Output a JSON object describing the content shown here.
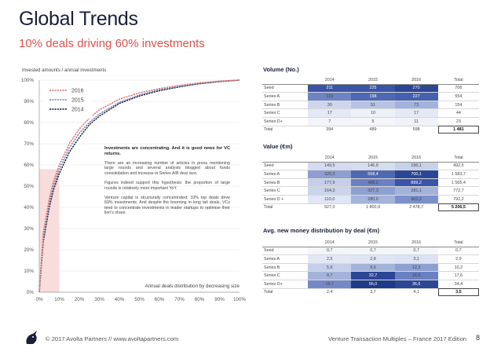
{
  "header": {
    "title": "Global Trends",
    "subtitle": "10% deals driving 60% investments"
  },
  "chart_data": [
    {
      "type": "line",
      "title": "",
      "ylabel": "Invested amounts / annual investments",
      "xlabel": "Annual deals distribution by decreasing size",
      "x_ticks": [
        "0%",
        "10%",
        "20%",
        "30%",
        "40%",
        "50%",
        "60%",
        "70%",
        "80%",
        "90%",
        "100%"
      ],
      "y_ticks": [
        "0%",
        "10%",
        "20%",
        "30%",
        "40%",
        "50%",
        "60%",
        "70%",
        "80%",
        "90%",
        "100%"
      ],
      "xlim": [
        0,
        100
      ],
      "ylim": [
        0,
        100
      ],
      "legend_position": "top-left",
      "highlight_band": {
        "x_from": 0,
        "x_to": 10,
        "color": "#f9dcdc"
      },
      "x": [
        0,
        2,
        5,
        7,
        10,
        15,
        20,
        25,
        30,
        40,
        50,
        60,
        70,
        80,
        90,
        100
      ],
      "series": [
        {
          "name": "2016",
          "color": "#e0726d",
          "values": [
            0,
            28,
            44,
            52,
            60,
            70,
            77,
            82,
            86,
            91,
            94,
            96,
            97.5,
            98.7,
            99.5,
            100
          ]
        },
        {
          "name": "2015",
          "color": "#6f86b8",
          "values": [
            0,
            26,
            42,
            50,
            58,
            68,
            75,
            80,
            84,
            89.5,
            93,
            95.5,
            97,
            98.4,
            99.4,
            100
          ]
        },
        {
          "name": "2014",
          "color": "#1a1f3a",
          "values": [
            0,
            24,
            40,
            48,
            56,
            66,
            73,
            79,
            83,
            89,
            92.5,
            95,
            96.8,
            98.3,
            99.3,
            100
          ]
        }
      ],
      "annotation": {
        "lead": "Investments are concentrating. And it is good news for VC returns.",
        "p1": "There are an increasing number of articles in press mentioning large rounds and several analysts blogged about funds consolidation and increase in Series A/B deal size.",
        "p2": "Figures indeed support this hypothesis: the proportion of large rounds is relatively more important YoY.",
        "p3": "Venture capital is structurally concentrated: 10% top deals drive 60% investments. And despite the booming in long tail deals, VCs tend to concentrate investments in leader startups to optimise their lion's share."
      }
    },
    {
      "type": "table",
      "title": "Volume (No.)",
      "columns": [
        "",
        "2014",
        "2015",
        "2016",
        "Total"
      ],
      "rows": [
        {
          "label": "Seed",
          "cells": [
            "211",
            "225",
            "270",
            "706"
          ],
          "shades": [
            "#3a54a6",
            "#3a54a6",
            "#2c4696"
          ]
        },
        {
          "label": "Series A",
          "cells": [
            "129",
            "198",
            "227",
            "554"
          ],
          "shades": [
            "#6d83c4",
            "#4f68b3",
            "#4560ae"
          ]
        },
        {
          "label": "Series B",
          "cells": [
            "30",
            "51",
            "73",
            "154"
          ],
          "shades": [
            "#ced6ec",
            "#b7c3e3",
            "#a2b2da"
          ]
        },
        {
          "label": "Series C",
          "cells": [
            "17",
            "10",
            "17",
            "44"
          ],
          "shades": [
            "#e4e9f5",
            "#eef1f8",
            "#e4e9f5"
          ]
        },
        {
          "label": "Series D+",
          "cells": [
            "7",
            "5",
            "11",
            "23"
          ],
          "shades": [
            "#f2f4fa",
            "#f4f6fb",
            "#eff2f9"
          ]
        }
      ],
      "total": {
        "label": "Total",
        "cells": [
          "394",
          "489",
          "598",
          "1 481"
        ]
      }
    },
    {
      "type": "table",
      "title": "Value (€m)",
      "columns": [
        "",
        "2014",
        "2015",
        "2016",
        "Total"
      ],
      "rows": [
        {
          "label": "Seed",
          "cells": [
            "149,5",
            "146,9",
            "196,1",
            "492,5"
          ],
          "shades": [
            "#d5dcef",
            "#d6ddef",
            "#c8d1ea"
          ]
        },
        {
          "label": "Series A",
          "cells": [
            "325,3",
            "558,4",
            "700,1",
            "1 583,7"
          ],
          "shades": [
            "#8d9fd1",
            "#4f68b3",
            "#2c4696"
          ]
        },
        {
          "label": "Series B",
          "cells": [
            "177,9",
            "488,2",
            "899,2",
            "1 565,4"
          ],
          "shades": [
            "#c5cfe9",
            "#6a80c2",
            "#3a54a6"
          ]
        },
        {
          "label": "Series C",
          "cells": [
            "164,3",
            "327,3",
            "281,1",
            "772,7"
          ],
          "shades": [
            "#cbd4eb",
            "#8ea0d2",
            "#a2b2da"
          ]
        },
        {
          "label": "Series D +",
          "cells": [
            "110,0",
            "280,0",
            "402,2",
            "792,2"
          ],
          "shades": [
            "#e0e6f4",
            "#a3b3da",
            "#7c90ca"
          ]
        }
      ],
      "total": {
        "label": "Total",
        "cells": [
          "927,0",
          "1 800,9",
          "2 478,7",
          "5 206,5"
        ]
      }
    },
    {
      "type": "table",
      "title": "Avg. new money distribution by deal (€m)",
      "columns": [
        "",
        "2014",
        "2015",
        "2016",
        "Total"
      ],
      "rows": [
        {
          "label": "Seed",
          "cells": [
            "0,7",
            "0,7",
            "0,7",
            "0,7"
          ],
          "shades": [
            "#f3f5fa",
            "#f3f5fa",
            "#f3f5fa"
          ]
        },
        {
          "label": "Series A",
          "cells": [
            "2,5",
            "2,8",
            "3,1",
            "2,9"
          ],
          "shades": [
            "#e3e8f4",
            "#e0e6f3",
            "#dde3f2"
          ]
        },
        {
          "label": "Series B",
          "cells": [
            "5,9",
            "9,6",
            "12,3",
            "10,2"
          ],
          "shades": [
            "#c5cfe9",
            "#a3b3da",
            "#8ea0d2"
          ]
        },
        {
          "label": "Series C",
          "cells": [
            "9,7",
            "32,7",
            "16,5",
            "17,6"
          ],
          "shades": [
            "#a3b3da",
            "#2c4696",
            "#6a80c2"
          ]
        },
        {
          "label": "Series D+",
          "cells": [
            "15,7",
            "56,0",
            "36,6",
            "34,4"
          ],
          "shades": [
            "#7488c7",
            "#1f3a8a",
            "#2c4696"
          ]
        }
      ],
      "total": {
        "label": "Total",
        "cells": [
          "2,4",
          "3,7",
          "4,1",
          "3,5"
        ]
      }
    }
  ],
  "footer": {
    "left": "© 2017 Avolta Partners // www.avoltapartners.com",
    "right": "Venture Transaction Multiples – France 2017 Edition",
    "page": "8"
  }
}
